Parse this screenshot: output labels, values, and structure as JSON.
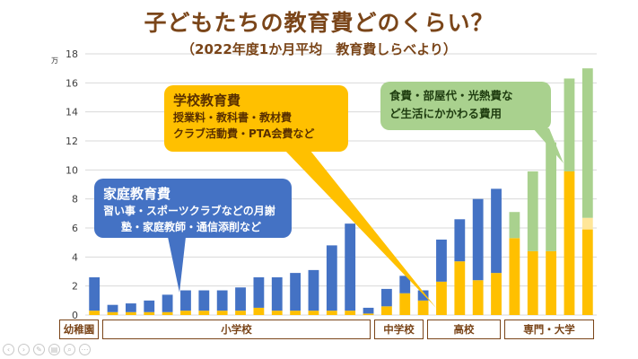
{
  "title": "子どもたちの教育費どのくらい？",
  "subtitle": "（2022年度1か月平均　教育費しらべより）",
  "unit_label": "万",
  "callouts": {
    "school": {
      "heading": "学校教育費",
      "line1": "授業料・教科書・教材費",
      "line2": "クラブ活動費・PTA会費など"
    },
    "home": {
      "heading": "家庭教育費",
      "line1": "習い事・スポーツクラブなどの月謝",
      "line2": "塾・家庭教師・通信添削など"
    },
    "living": {
      "line1": "食費・部屋代・光熱費な",
      "line2": "ど生活にかかわる費用"
    }
  },
  "segments": {
    "kinder": "幼稚園",
    "elementary": "小学校",
    "junior_high": "中学校",
    "high": "高校",
    "college": "専門・大学"
  },
  "colors": {
    "home": "#4472c4",
    "school": "#ffc000",
    "living": "#a9d18e",
    "other": "#ffe699",
    "title": "#7a4519"
  },
  "chart_data": {
    "type": "bar",
    "stacked": true,
    "ylim": [
      0,
      18
    ],
    "yticks": [
      0,
      2,
      4,
      6,
      8,
      10,
      12,
      14,
      16,
      18
    ],
    "grid": true,
    "bars": [
      {
        "school": 0.3,
        "home": 2.3
      },
      {
        "school": 0.2,
        "home": 0.5
      },
      {
        "school": 0.2,
        "home": 0.6
      },
      {
        "school": 0.2,
        "home": 0.8
      },
      {
        "school": 0.2,
        "home": 1.2
      },
      {
        "school": 0.3,
        "home": 1.4
      },
      {
        "school": 0.3,
        "home": 1.4
      },
      {
        "school": 0.3,
        "home": 1.4
      },
      {
        "school": 0.3,
        "home": 1.6
      },
      {
        "school": 0.5,
        "home": 2.1
      },
      {
        "school": 0.3,
        "home": 2.3
      },
      {
        "school": 0.3,
        "home": 2.6
      },
      {
        "school": 0.3,
        "home": 2.8
      },
      {
        "school": 0.3,
        "home": 4.5
      },
      {
        "school": 0.3,
        "home": 6.0
      },
      {
        "school": 0.1,
        "home": 0.4
      },
      {
        "school": 0.6,
        "home": 1.2
      },
      {
        "school": 1.5,
        "home": 1.2
      },
      {
        "school": 1.0,
        "home": 0.7
      },
      {
        "school": 2.3,
        "home": 2.9
      },
      {
        "school": 3.7,
        "home": 2.9
      },
      {
        "school": 2.4,
        "home": 5.6
      },
      {
        "school": 2.9,
        "home": 5.8
      },
      {
        "school": 5.3,
        "living": 1.8
      },
      {
        "school": 4.4,
        "living": 5.5
      },
      {
        "school": 4.4,
        "living": 7.5
      },
      {
        "school": 9.9,
        "living": 6.4
      },
      {
        "school": 5.9,
        "other": 0.8,
        "living": 10.3
      }
    ]
  }
}
